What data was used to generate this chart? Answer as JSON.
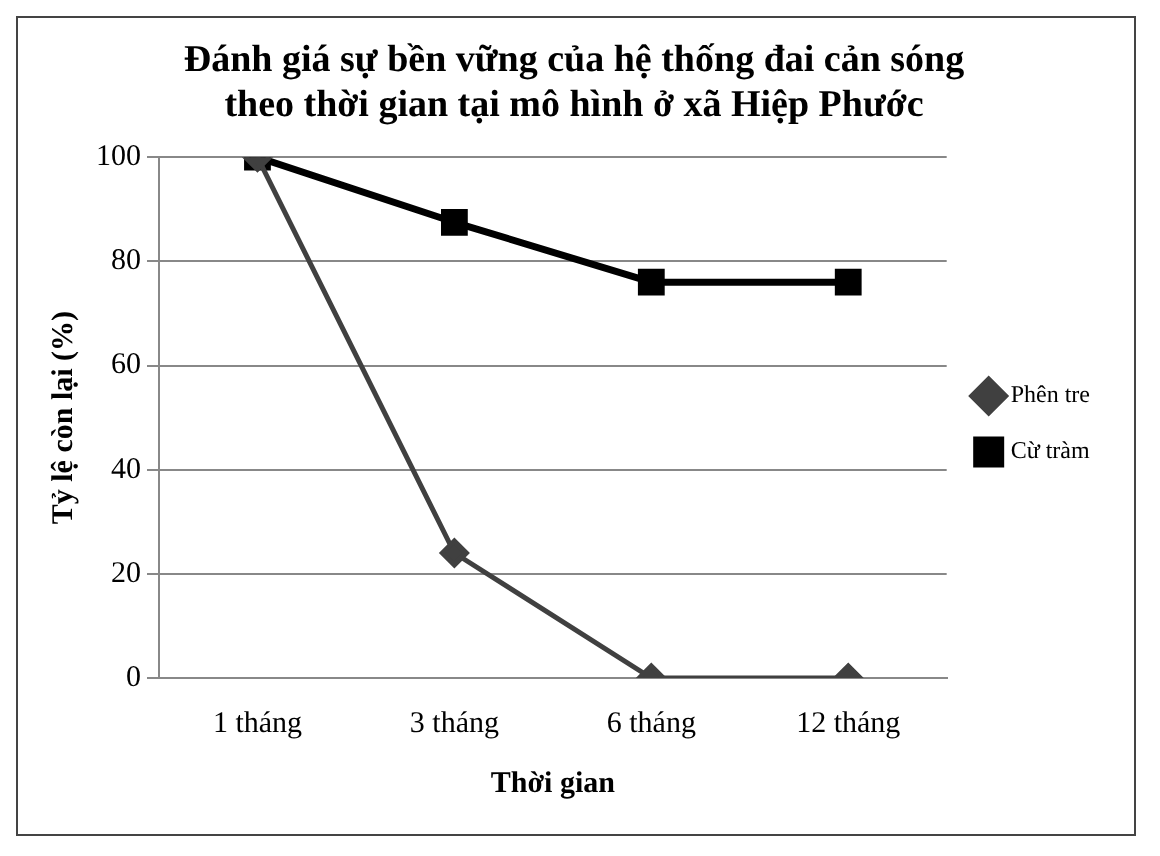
{
  "chart_data": {
    "type": "line",
    "title": [
      "Đánh giá sự bền vững của hệ thống đai cản sóng",
      "theo thời gian tại mô hình ở xã Hiệp Phước"
    ],
    "xlabel": "Thời gian",
    "ylabel": "Tỷ lệ còn lại (%)",
    "categories": [
      "1 tháng",
      "3 tháng",
      "6 tháng",
      "12 tháng"
    ],
    "series": [
      {
        "name": "Phên tre",
        "color": "#404040",
        "marker": "diamond",
        "values": [
          100,
          24,
          0,
          0
        ]
      },
      {
        "name": "Cừ tràm",
        "color": "#000000",
        "marker": "square",
        "values": [
          100,
          87.5,
          76,
          76
        ]
      }
    ],
    "ylim": [
      0,
      100
    ],
    "yticks": [
      0,
      20,
      40,
      60,
      80,
      100
    ],
    "grid": "y",
    "legend": "right"
  }
}
